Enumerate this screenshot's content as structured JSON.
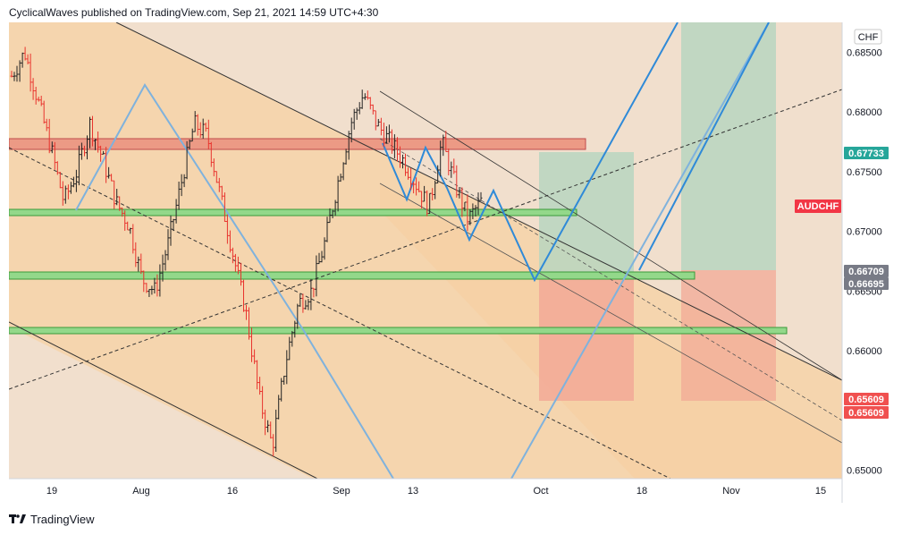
{
  "header": {
    "attribution": "CyclicalWaves published on TradingView.com, Sep 21, 2021 14:59 UTC+4:30"
  },
  "footer": {
    "brand": "TradingView",
    "logo_icon": "tradingview-logo-icon"
  },
  "colors": {
    "pane_background": "#f1dfcd",
    "channel_fill": "#f5d5ae",
    "resistance_zone": "#ec9a85",
    "support_zone": "#93d88a",
    "profit_zone": "#b9d6c0",
    "loss_zone": "#f2a996",
    "wave_path": "#2f8ad8",
    "guide_path": "#7fb2dd",
    "last_price_badge": "#26a69a",
    "alert_badge": "#f23645",
    "level_badge": "#787b86",
    "stop_badge": "#f0504f",
    "candle_up": "#222222",
    "candle_down": "#e8332d"
  },
  "chart_data": {
    "type": "candlestick",
    "symbol": "AUDCHF",
    "currency": "CHF",
    "x_tick_labels": [
      "19",
      "Aug",
      "16",
      "Sep",
      "13",
      "Oct",
      "18",
      "Nov",
      "15"
    ],
    "y_tick_labels": [
      "0.68500",
      "0.68000",
      "0.67500",
      "0.67000",
      "0.66500",
      "0.66000",
      "0.65500",
      "0.65000"
    ],
    "ylim": [
      0.6493,
      0.6875
    ],
    "price_badges": [
      {
        "label": "0.67733",
        "value": 0.67733,
        "kind": "last"
      },
      {
        "label": "0.66709",
        "value": 0.66709,
        "kind": "level"
      },
      {
        "label": "0.66695",
        "value": 0.66695,
        "kind": "level"
      },
      {
        "label": "0.65609",
        "value": 0.65609,
        "kind": "stop"
      },
      {
        "label": "0.65609",
        "value": 0.65609,
        "kind": "stop"
      }
    ],
    "symbol_badge": {
      "label": "AUDCHF",
      "value": 0.6725
    },
    "zones": [
      {
        "name": "resistance",
        "from": 0.6772,
        "to": 0.6782
      },
      {
        "name": "support-1",
        "from": 0.672,
        "to": 0.6725
      },
      {
        "name": "support-2",
        "from": 0.6667,
        "to": 0.6673
      },
      {
        "name": "support-3",
        "from": 0.6618,
        "to": 0.6624
      }
    ],
    "close_path": [
      0.683,
      0.685,
      0.681,
      0.677,
      0.6725,
      0.675,
      0.679,
      0.676,
      0.6725,
      0.6705,
      0.666,
      0.665,
      0.669,
      0.674,
      0.679,
      0.678,
      0.673,
      0.668,
      0.663,
      0.656,
      0.652,
      0.659,
      0.664,
      0.665,
      0.669,
      0.674,
      0.679,
      0.6815,
      0.679,
      0.6775,
      0.676,
      0.674,
      0.672,
      0.6775,
      0.674,
      0.671,
      0.6725
    ]
  }
}
